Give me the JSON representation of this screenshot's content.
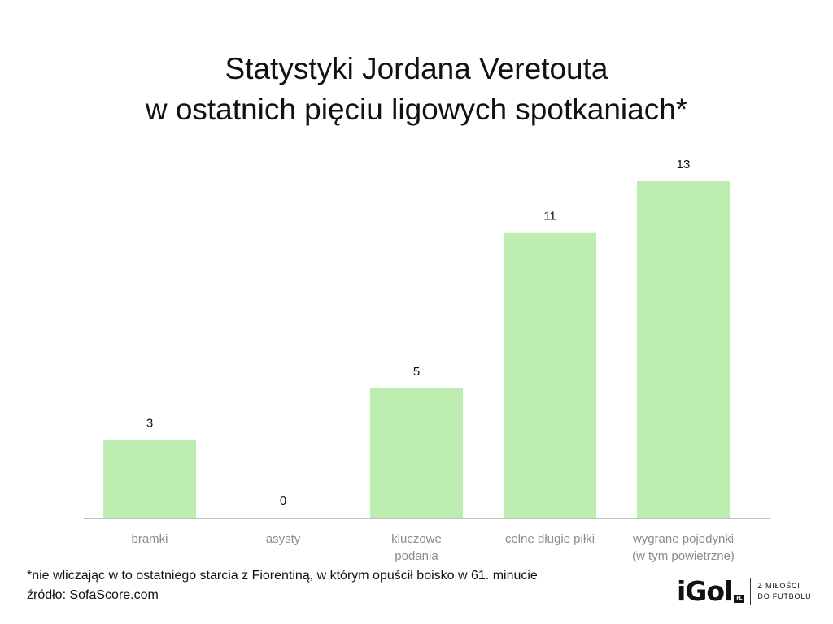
{
  "title_lines": [
    "Statystyki Jordana Veretouta",
    "w ostatnich pięciu ligowych spotkaniach*"
  ],
  "footnotes": [
    "*nie wliczając w to ostatniego starcia z Fiorentiną, w którym opuścił boisko w 61. minucie",
    "źródło: SofaScore.com"
  ],
  "logo": {
    "mark": "iGol",
    "badge": "PL",
    "tagline": [
      "Z MIŁOŚCI",
      "DO FUTBOLU"
    ]
  },
  "colors": {
    "bar": "#bdedb0",
    "axis": "#bfbfbf",
    "category_label": "#8c8c8c",
    "value_label": "#111111"
  },
  "chart_data": {
    "type": "bar",
    "categories": [
      [
        "bramki"
      ],
      [
        "asysty"
      ],
      [
        "kluczowe",
        "podania"
      ],
      [
        "celne długie piłki"
      ],
      [
        "wygrane pojedynki",
        "(w tym powietrzne)"
      ]
    ],
    "values": [
      3,
      0,
      5,
      11,
      13
    ],
    "ylim": [
      0,
      13
    ],
    "grid": false,
    "legend": "none",
    "xlabel": "",
    "ylabel": ""
  }
}
